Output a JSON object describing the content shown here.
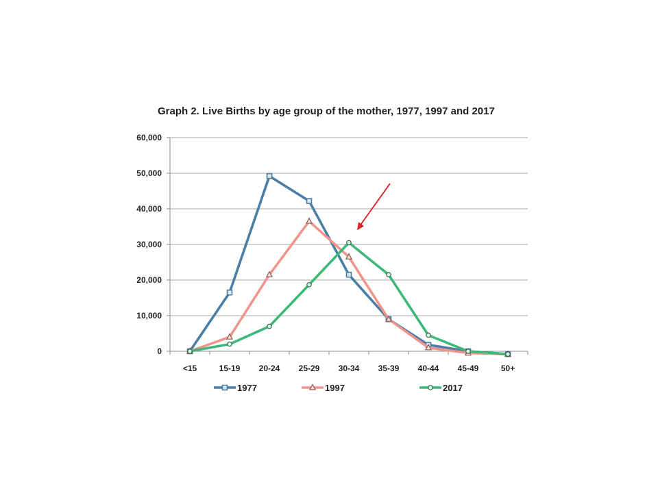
{
  "chart_data": {
    "type": "line",
    "title": "Graph 2.  Live Births by age group of the mother, 1977,  1997 and 2017",
    "categories": [
      "<15",
      "15-19",
      "20-24",
      "25-29",
      "30-34",
      "35-39",
      "40-44",
      "45-49",
      "50+"
    ],
    "ylim": [
      0,
      60000
    ],
    "yticks": [
      0,
      10000,
      20000,
      30000,
      40000,
      50000,
      60000
    ],
    "ytick_labels": [
      "0",
      "10,000",
      "20,000",
      "30,000",
      "40,000",
      "50,000",
      "60,000"
    ],
    "grid": true,
    "legend_position": "bottom",
    "series": [
      {
        "name": "1977",
        "values": [
          0,
          16500,
          49200,
          42200,
          21500,
          9000,
          1800,
          0,
          -800
        ],
        "color": "#4a7ea5",
        "marker": "square"
      },
      {
        "name": "1997",
        "values": [
          0,
          4000,
          21500,
          36500,
          26500,
          9000,
          1000,
          -500,
          -800
        ],
        "color": "#f0948c",
        "marker": "triangle"
      },
      {
        "name": "2017",
        "values": [
          0,
          2000,
          7000,
          18700,
          30500,
          21500,
          4500,
          0,
          -800
        ],
        "color": "#3cb878",
        "marker": "circle"
      }
    ],
    "annotation": {
      "type": "arrow",
      "color": "#e02020",
      "target_category": "30-34",
      "target_value": 34000
    }
  }
}
